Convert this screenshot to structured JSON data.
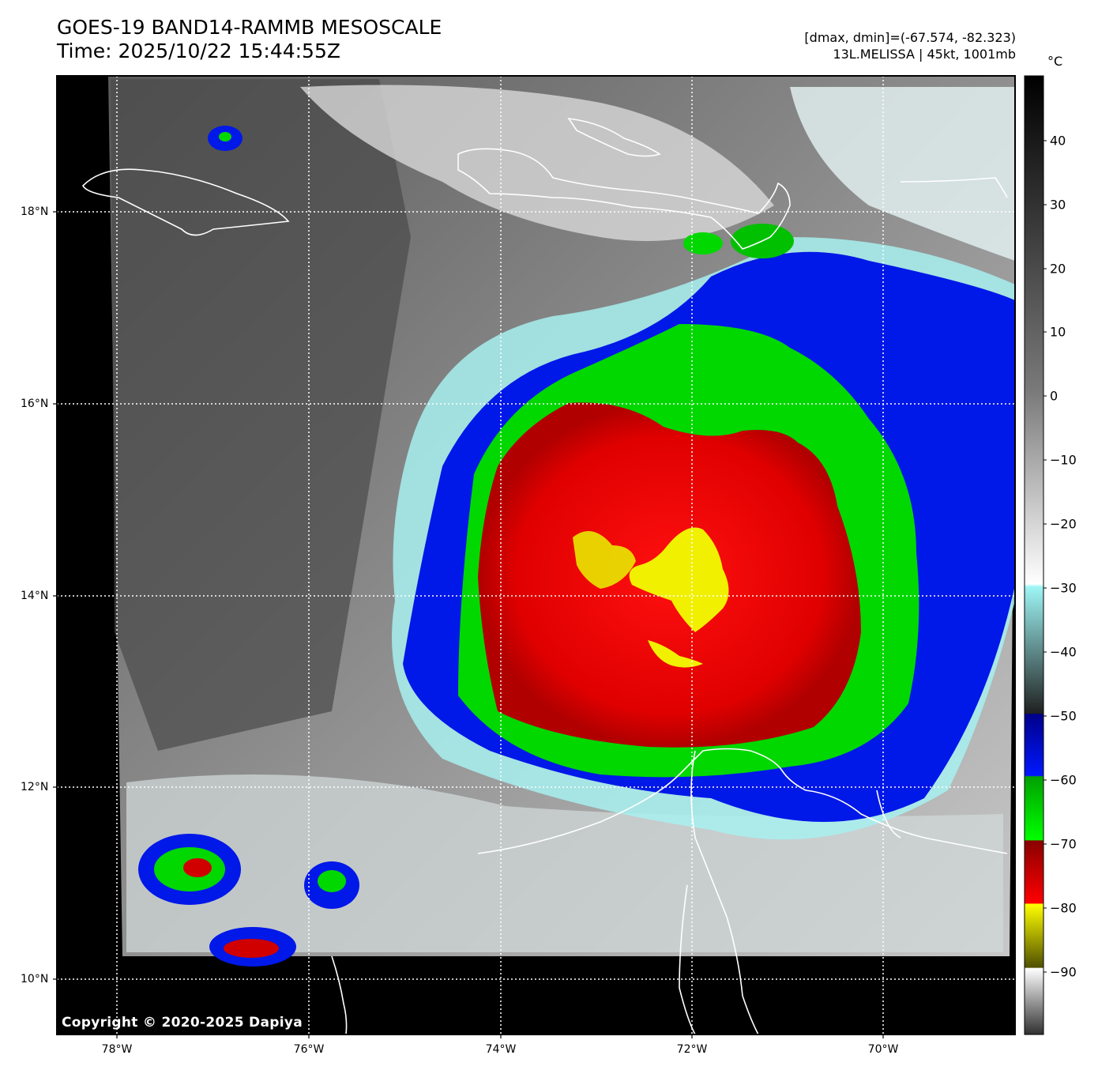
{
  "header": {
    "title_line1": "GOES-19 BAND14-RAMMB MESOSCALE",
    "title_line2": "Time: 2025/10/22 15:44:55Z",
    "info_line1": "[dmax, dmin]=(-67.574, -82.323)",
    "info_line2": "13L.MELISSA | 45kt, 1001mb"
  },
  "map": {
    "lat_ticks": [
      "18°N",
      "16°N",
      "14°N",
      "12°N",
      "10°N"
    ],
    "lon_ticks": [
      "78°W",
      "76°W",
      "74°W",
      "72°W",
      "70°W"
    ],
    "copyright": "Copyright © 2020-2025 Dapiya",
    "grid": "on"
  },
  "colorbar": {
    "unit": "°C",
    "ticks": [
      "40",
      "30",
      "20",
      "10",
      "0",
      "−10",
      "−20",
      "−30",
      "−40",
      "−50",
      "−60",
      "−70",
      "−80",
      "−90"
    ],
    "colors": {
      "yellow": "#f0f000",
      "red": "#e00000",
      "green": "#00d000",
      "blue": "#0010e0",
      "cyan": "#a8f0f0"
    }
  }
}
